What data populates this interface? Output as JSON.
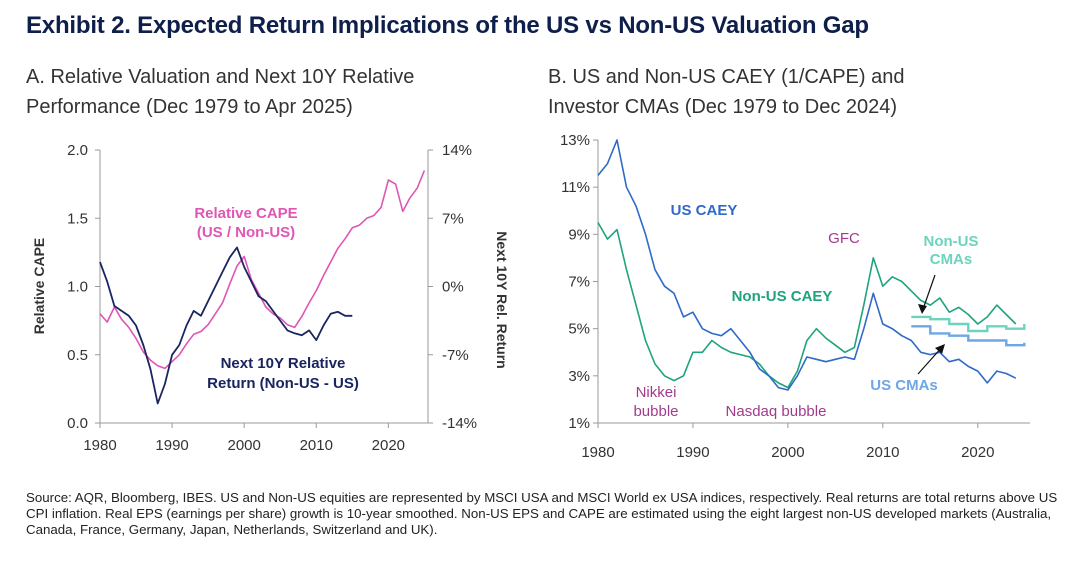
{
  "title": "Exhibit 2. Expected Return Implications of the US vs Non-US Valuation Gap",
  "panel_a": {
    "title_line1": "A. Relative Valuation and Next 10Y Relative",
    "title_line2": "Performance (Dec 1979 to Apr 2025)"
  },
  "panel_b": {
    "title_line1": "B. US and Non-US CAEY (1/CAPE) and",
    "title_line2": "Investor CMAs (Dec 1979 to Dec 2024)"
  },
  "source": "Source: AQR, Bloomberg, IBES. US and Non-US equities are represented by MSCI USA and MSCI World ex USA indices, respectively. Real returns are total returns above US CPI inflation. Real EPS (earnings per share) growth is 10-year smoothed. Non-US EPS and CAPE are estimated using the eight largest non-US developed markets (Australia, Canada, France, Germany, Japan, Netherlands, Switzerland and UK).",
  "colors": {
    "title": "#0f1f4b",
    "pink": "#e055b5",
    "navy": "#1a2560",
    "us_blue": "#2f6ac8",
    "nonus_green": "#1fa37e",
    "nonus_cma": "#6cd3bf",
    "us_cma": "#6ea6e6",
    "annot_purple": "#a23b8c",
    "axis": "#9a9a9a"
  },
  "chart_data": [
    {
      "type": "line",
      "title": "A. Relative Valuation and Next 10Y Relative Performance (Dec 1979 to Apr 2025)",
      "xlabel": "",
      "ylabel": "Relative CAPE",
      "y2label": "Next 10Y Rel. Return",
      "xlim": [
        1980,
        2025.5
      ],
      "ylim": [
        0.0,
        2.0
      ],
      "y2lim": [
        -0.14,
        0.14
      ],
      "x_ticks": [
        "1980",
        "1990",
        "2000",
        "2010",
        "2020"
      ],
      "y_ticks": [
        "0.0",
        "0.5",
        "1.0",
        "1.5",
        "2.0"
      ],
      "y2_ticks": [
        "-14%",
        "-7%",
        "0%",
        "7%",
        "14%"
      ],
      "series": [
        {
          "name": "Relative CAPE (US / Non-US)",
          "label_line1": "Relative CAPE",
          "label_line2": "(US / Non-US)",
          "axis": "left",
          "x": [
            1980,
            1981,
            1982,
            1983,
            1984,
            1985,
            1986,
            1987,
            1988,
            1989,
            1990,
            1991,
            1992,
            1993,
            1994,
            1995,
            1996,
            1997,
            1998,
            1999,
            2000,
            2001,
            2002,
            2003,
            2004,
            2005,
            2006,
            2007,
            2008,
            2009,
            2010,
            2011,
            2012,
            2013,
            2014,
            2015,
            2016,
            2017,
            2018,
            2019,
            2020,
            2021,
            2022,
            2023,
            2024,
            2025
          ],
          "values": [
            0.8,
            0.74,
            0.85,
            0.76,
            0.7,
            0.62,
            0.52,
            0.46,
            0.42,
            0.4,
            0.45,
            0.5,
            0.58,
            0.65,
            0.67,
            0.72,
            0.8,
            0.88,
            1.02,
            1.15,
            1.22,
            1.05,
            0.95,
            0.85,
            0.8,
            0.77,
            0.72,
            0.7,
            0.78,
            0.88,
            0.97,
            1.08,
            1.18,
            1.28,
            1.35,
            1.43,
            1.45,
            1.5,
            1.52,
            1.58,
            1.78,
            1.75,
            1.55,
            1.65,
            1.72,
            1.85
          ]
        },
        {
          "name": "Next 10Y Relative Return (Non-US - US)",
          "label_line1": "Next 10Y Relative",
          "label_line2": "Return (Non-US - US)",
          "axis": "right",
          "x": [
            1980,
            1981,
            1982,
            1983,
            1984,
            1985,
            1986,
            1987,
            1988,
            1989,
            1990,
            1991,
            1992,
            1993,
            1994,
            1995,
            1996,
            1997,
            1998,
            1999,
            2000,
            2001,
            2002,
            2003,
            2004,
            2005,
            2006,
            2007,
            2008,
            2009,
            2010,
            2011,
            2012,
            2013,
            2014,
            2015
          ],
          "values": [
            0.025,
            0.005,
            -0.02,
            -0.025,
            -0.03,
            -0.04,
            -0.06,
            -0.085,
            -0.12,
            -0.1,
            -0.07,
            -0.06,
            -0.04,
            -0.025,
            -0.03,
            -0.015,
            0.0,
            0.015,
            0.03,
            0.04,
            0.02,
            0.005,
            -0.01,
            -0.015,
            -0.025,
            -0.035,
            -0.045,
            -0.048,
            -0.05,
            -0.045,
            -0.055,
            -0.04,
            -0.028,
            -0.026,
            -0.03,
            -0.03
          ]
        }
      ]
    },
    {
      "type": "line",
      "title": "B. US and Non-US CAEY (1/CAPE) and Investor CMAs (Dec 1979 to Dec 2024)",
      "xlabel": "",
      "ylabel": "",
      "xlim": [
        1980,
        2025.5
      ],
      "ylim": [
        0.01,
        0.13
      ],
      "x_ticks": [
        "1980",
        "1990",
        "2000",
        "2010",
        "2020"
      ],
      "y_ticks": [
        "1%",
        "3%",
        "5%",
        "7%",
        "9%",
        "11%",
        "13%"
      ],
      "series": [
        {
          "name": "US CAEY",
          "x": [
            1980,
            1981,
            1982,
            1983,
            1984,
            1985,
            1986,
            1987,
            1988,
            1989,
            1990,
            1991,
            1992,
            1993,
            1994,
            1995,
            1996,
            1997,
            1998,
            1999,
            2000,
            2001,
            2002,
            2003,
            2004,
            2005,
            2006,
            2007,
            2008,
            2009,
            2010,
            2011,
            2012,
            2013,
            2014,
            2015,
            2016,
            2017,
            2018,
            2019,
            2020,
            2021,
            2022,
            2023,
            2024
          ],
          "values": [
            0.115,
            0.12,
            0.13,
            0.11,
            0.102,
            0.09,
            0.075,
            0.068,
            0.065,
            0.055,
            0.057,
            0.05,
            0.048,
            0.047,
            0.05,
            0.045,
            0.04,
            0.033,
            0.03,
            0.025,
            0.024,
            0.03,
            0.038,
            0.037,
            0.036,
            0.037,
            0.038,
            0.037,
            0.05,
            0.065,
            0.052,
            0.05,
            0.047,
            0.045,
            0.04,
            0.039,
            0.04,
            0.036,
            0.037,
            0.034,
            0.032,
            0.027,
            0.032,
            0.031,
            0.029
          ]
        },
        {
          "name": "Non-US CAEY",
          "x": [
            1980,
            1981,
            1982,
            1983,
            1984,
            1985,
            1986,
            1987,
            1988,
            1989,
            1990,
            1991,
            1992,
            1993,
            1994,
            1995,
            1996,
            1997,
            1998,
            1999,
            2000,
            2001,
            2002,
            2003,
            2004,
            2005,
            2006,
            2007,
            2008,
            2009,
            2010,
            2011,
            2012,
            2013,
            2014,
            2015,
            2016,
            2017,
            2018,
            2019,
            2020,
            2021,
            2022,
            2023,
            2024
          ],
          "values": [
            0.095,
            0.088,
            0.092,
            0.075,
            0.06,
            0.045,
            0.035,
            0.03,
            0.028,
            0.03,
            0.04,
            0.04,
            0.045,
            0.042,
            0.04,
            0.039,
            0.038,
            0.035,
            0.03,
            0.027,
            0.025,
            0.032,
            0.045,
            0.05,
            0.046,
            0.043,
            0.04,
            0.042,
            0.06,
            0.08,
            0.068,
            0.072,
            0.07,
            0.066,
            0.062,
            0.06,
            0.063,
            0.057,
            0.059,
            0.056,
            0.052,
            0.055,
            0.06,
            0.056,
            0.052
          ]
        },
        {
          "name": "Non-US CMAs",
          "x": [
            2013,
            2015,
            2017,
            2019,
            2021,
            2023,
            2024.9
          ],
          "values": [
            0.055,
            0.054,
            0.052,
            0.049,
            0.051,
            0.05,
            0.052
          ]
        },
        {
          "name": "US CMAs",
          "x": [
            2013,
            2015,
            2017,
            2019,
            2021,
            2023,
            2024.9
          ],
          "values": [
            0.051,
            0.048,
            0.047,
            0.045,
            0.045,
            0.043,
            0.044
          ]
        }
      ],
      "annotations": [
        {
          "text": "US CAEY"
        },
        {
          "text": "Non-US CAEY"
        },
        {
          "text": "GFC"
        },
        {
          "text_line1": "Non-US",
          "text_line2": "CMAs"
        },
        {
          "text": "US CMAs"
        },
        {
          "text_line1": "Nikkei",
          "text_line2": "bubble"
        },
        {
          "text": "Nasdaq bubble"
        }
      ]
    }
  ]
}
